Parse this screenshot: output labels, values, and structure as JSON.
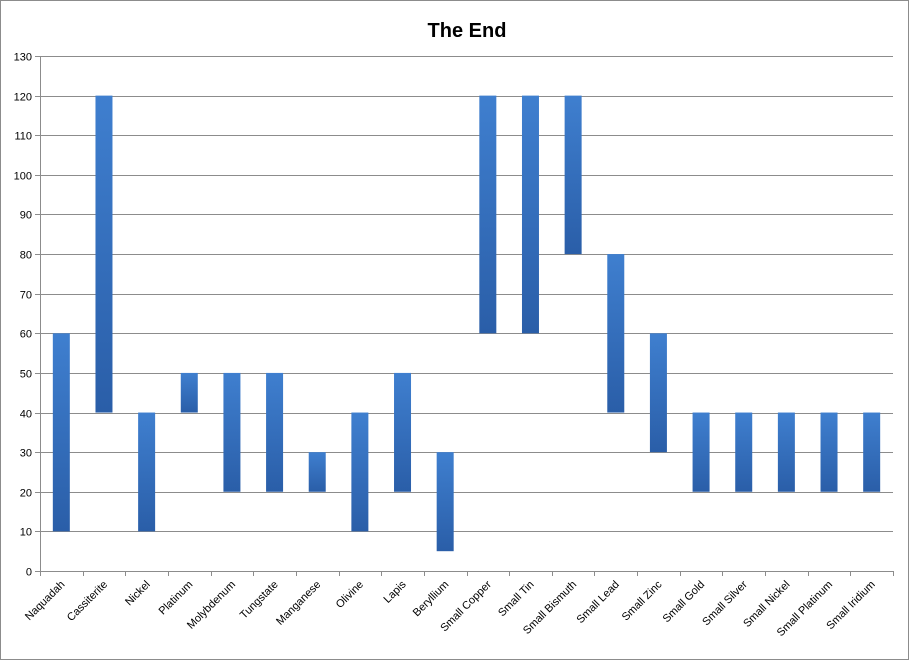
{
  "chart_data": {
    "type": "bar",
    "title": "The End",
    "xlabel": "",
    "ylabel": "",
    "ylim": [
      0,
      130
    ],
    "yticks": [
      0,
      10,
      20,
      30,
      40,
      50,
      60,
      70,
      80,
      90,
      100,
      110,
      120,
      130
    ],
    "grid": true,
    "legend": "none",
    "bar_color": "#3f7fcf",
    "bar_color_dark": "#2a5ea8",
    "categories": [
      "Naquadah",
      "Cassiterite",
      "Nickel",
      "Platinum",
      "Molybdenum",
      "Tungstate",
      "Manganese",
      "Olivine",
      "Lapis",
      "Beryllium",
      "Small Copper",
      "Small Tin",
      "Small Bismuth",
      "Small Lead",
      "Small Zinc",
      "Small Gold",
      "Small Silver",
      "Small Nickel",
      "Small Platinum",
      "Small Iridium"
    ],
    "low": [
      10,
      40,
      10,
      40,
      20,
      20,
      20,
      10,
      20,
      5,
      60,
      60,
      80,
      40,
      30,
      20,
      20,
      20,
      20,
      20
    ],
    "high": [
      60,
      120,
      40,
      50,
      50,
      50,
      30,
      40,
      50,
      30,
      120,
      120,
      120,
      80,
      60,
      40,
      40,
      40,
      40,
      40
    ]
  }
}
